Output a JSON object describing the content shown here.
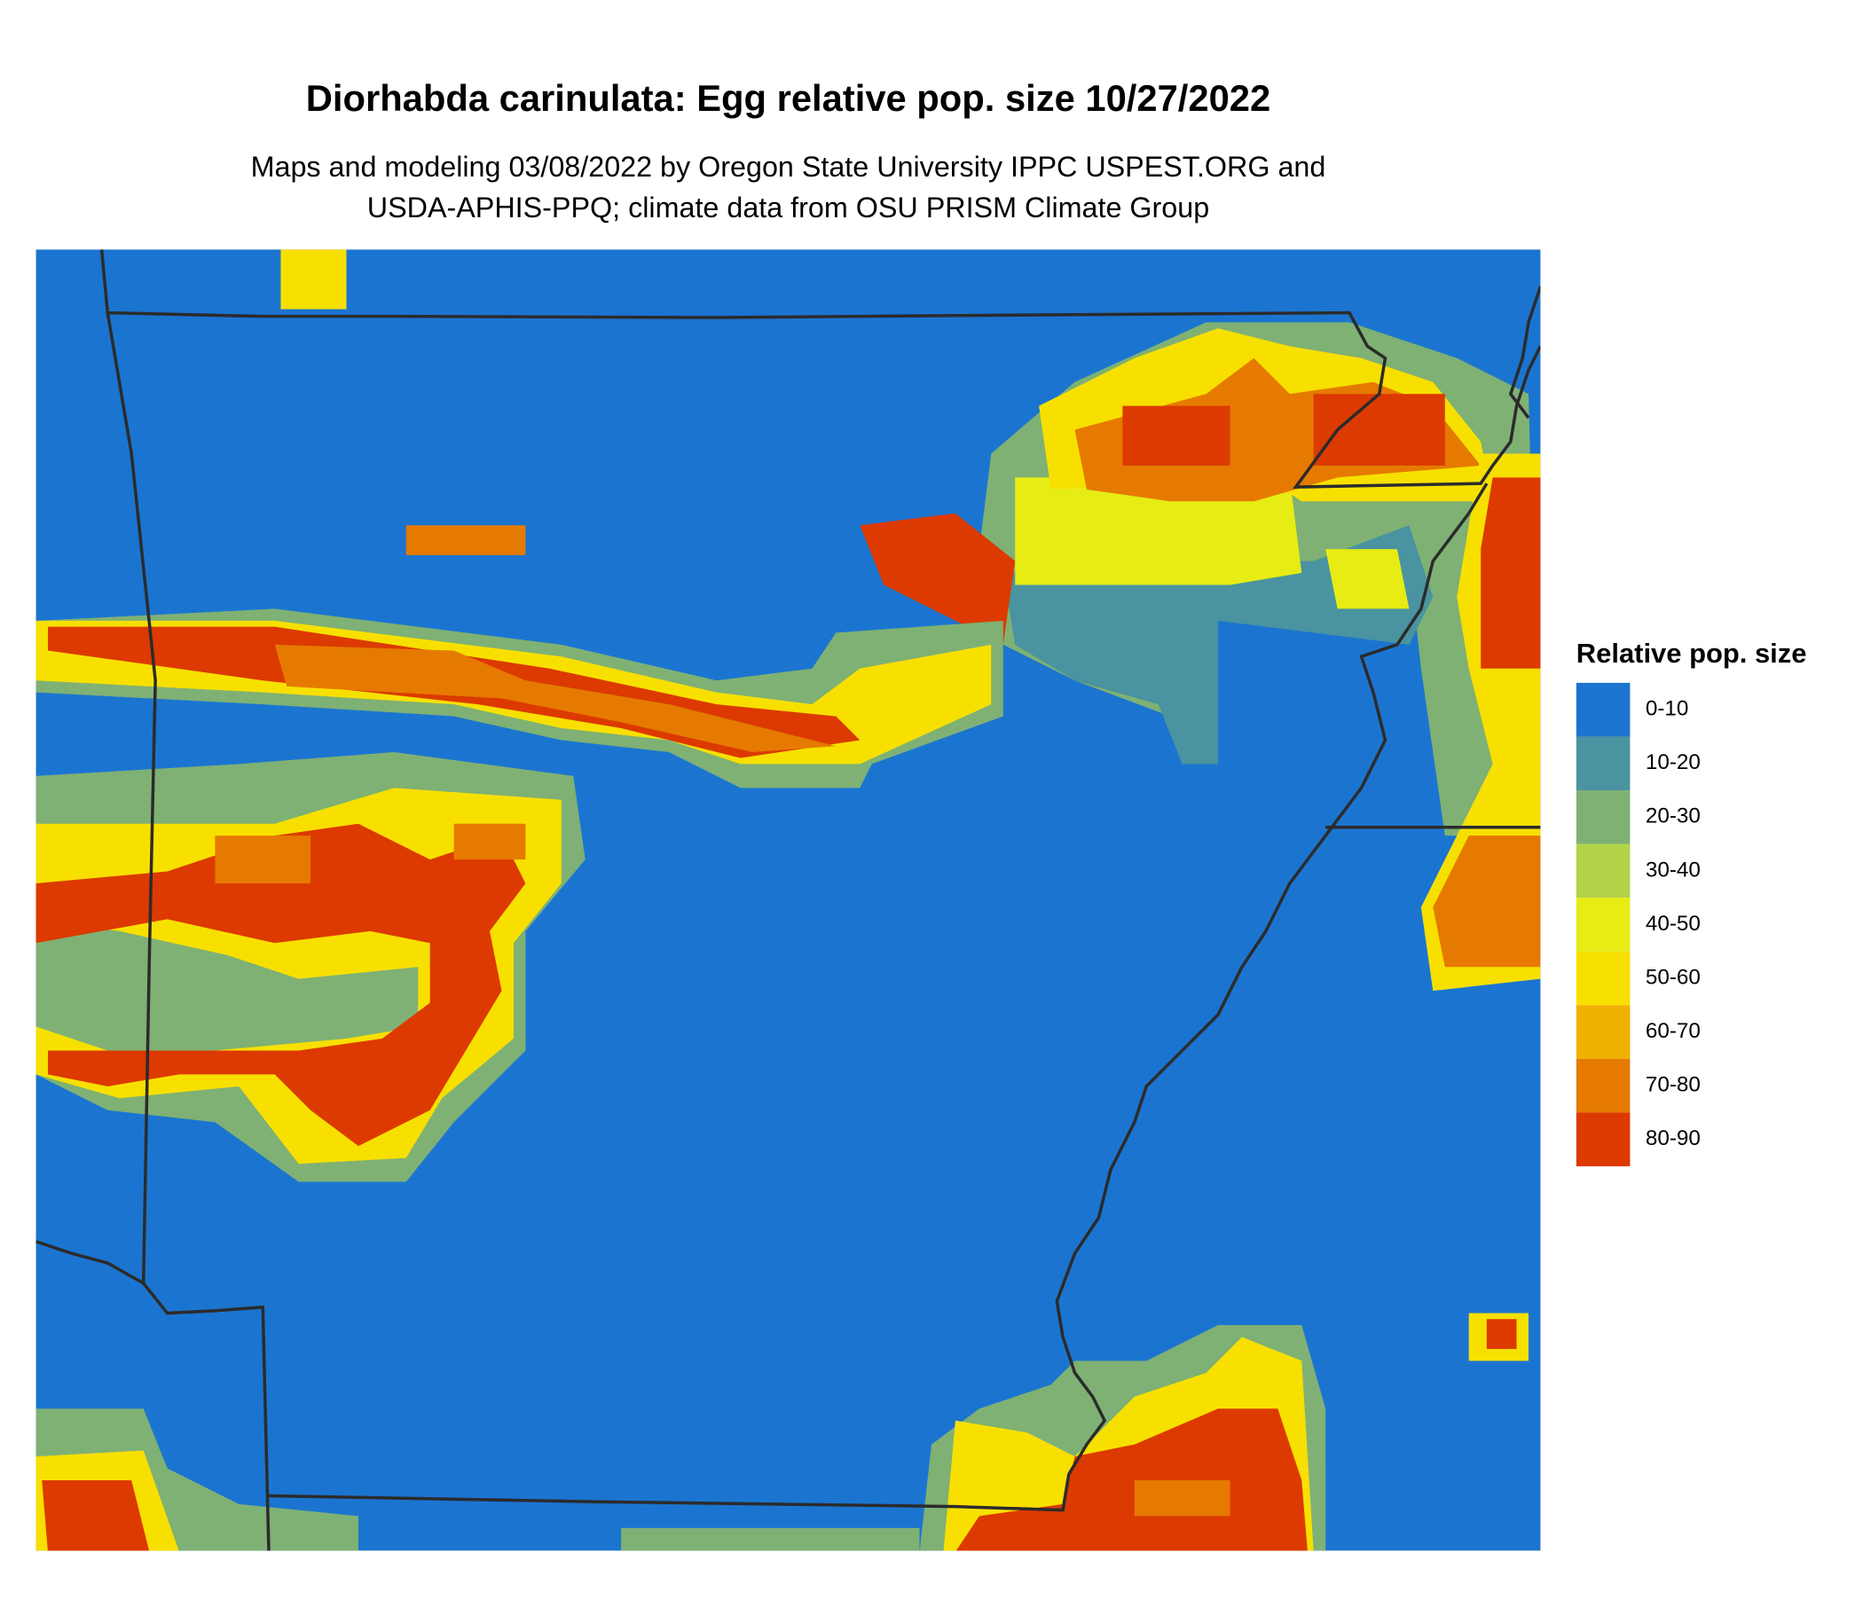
{
  "title": "Diorhabda carinulata: Egg relative pop. size 10/27/2022",
  "subtitle": [
    "Maps and modeling 03/08/2022 by Oregon State University IPPC USPEST.ORG and",
    "USDA-APHIS-PPQ; climate data from OSU PRISM Climate Group"
  ],
  "legend": {
    "title": "Relative pop. size",
    "items": [
      {
        "label": "0-10",
        "color": "#1b75d0"
      },
      {
        "label": "10-20",
        "color": "#4a93a0"
      },
      {
        "label": "20-30",
        "color": "#7fb174"
      },
      {
        "label": "30-40",
        "color": "#b3d34a"
      },
      {
        "label": "40-50",
        "color": "#e6ec14"
      },
      {
        "label": "50-60",
        "color": "#f7e000"
      },
      {
        "label": "60-70",
        "color": "#f0b000"
      },
      {
        "label": "70-80",
        "color": "#e67a00"
      },
      {
        "label": "80-90",
        "color": "#dc3a00"
      }
    ]
  }
}
